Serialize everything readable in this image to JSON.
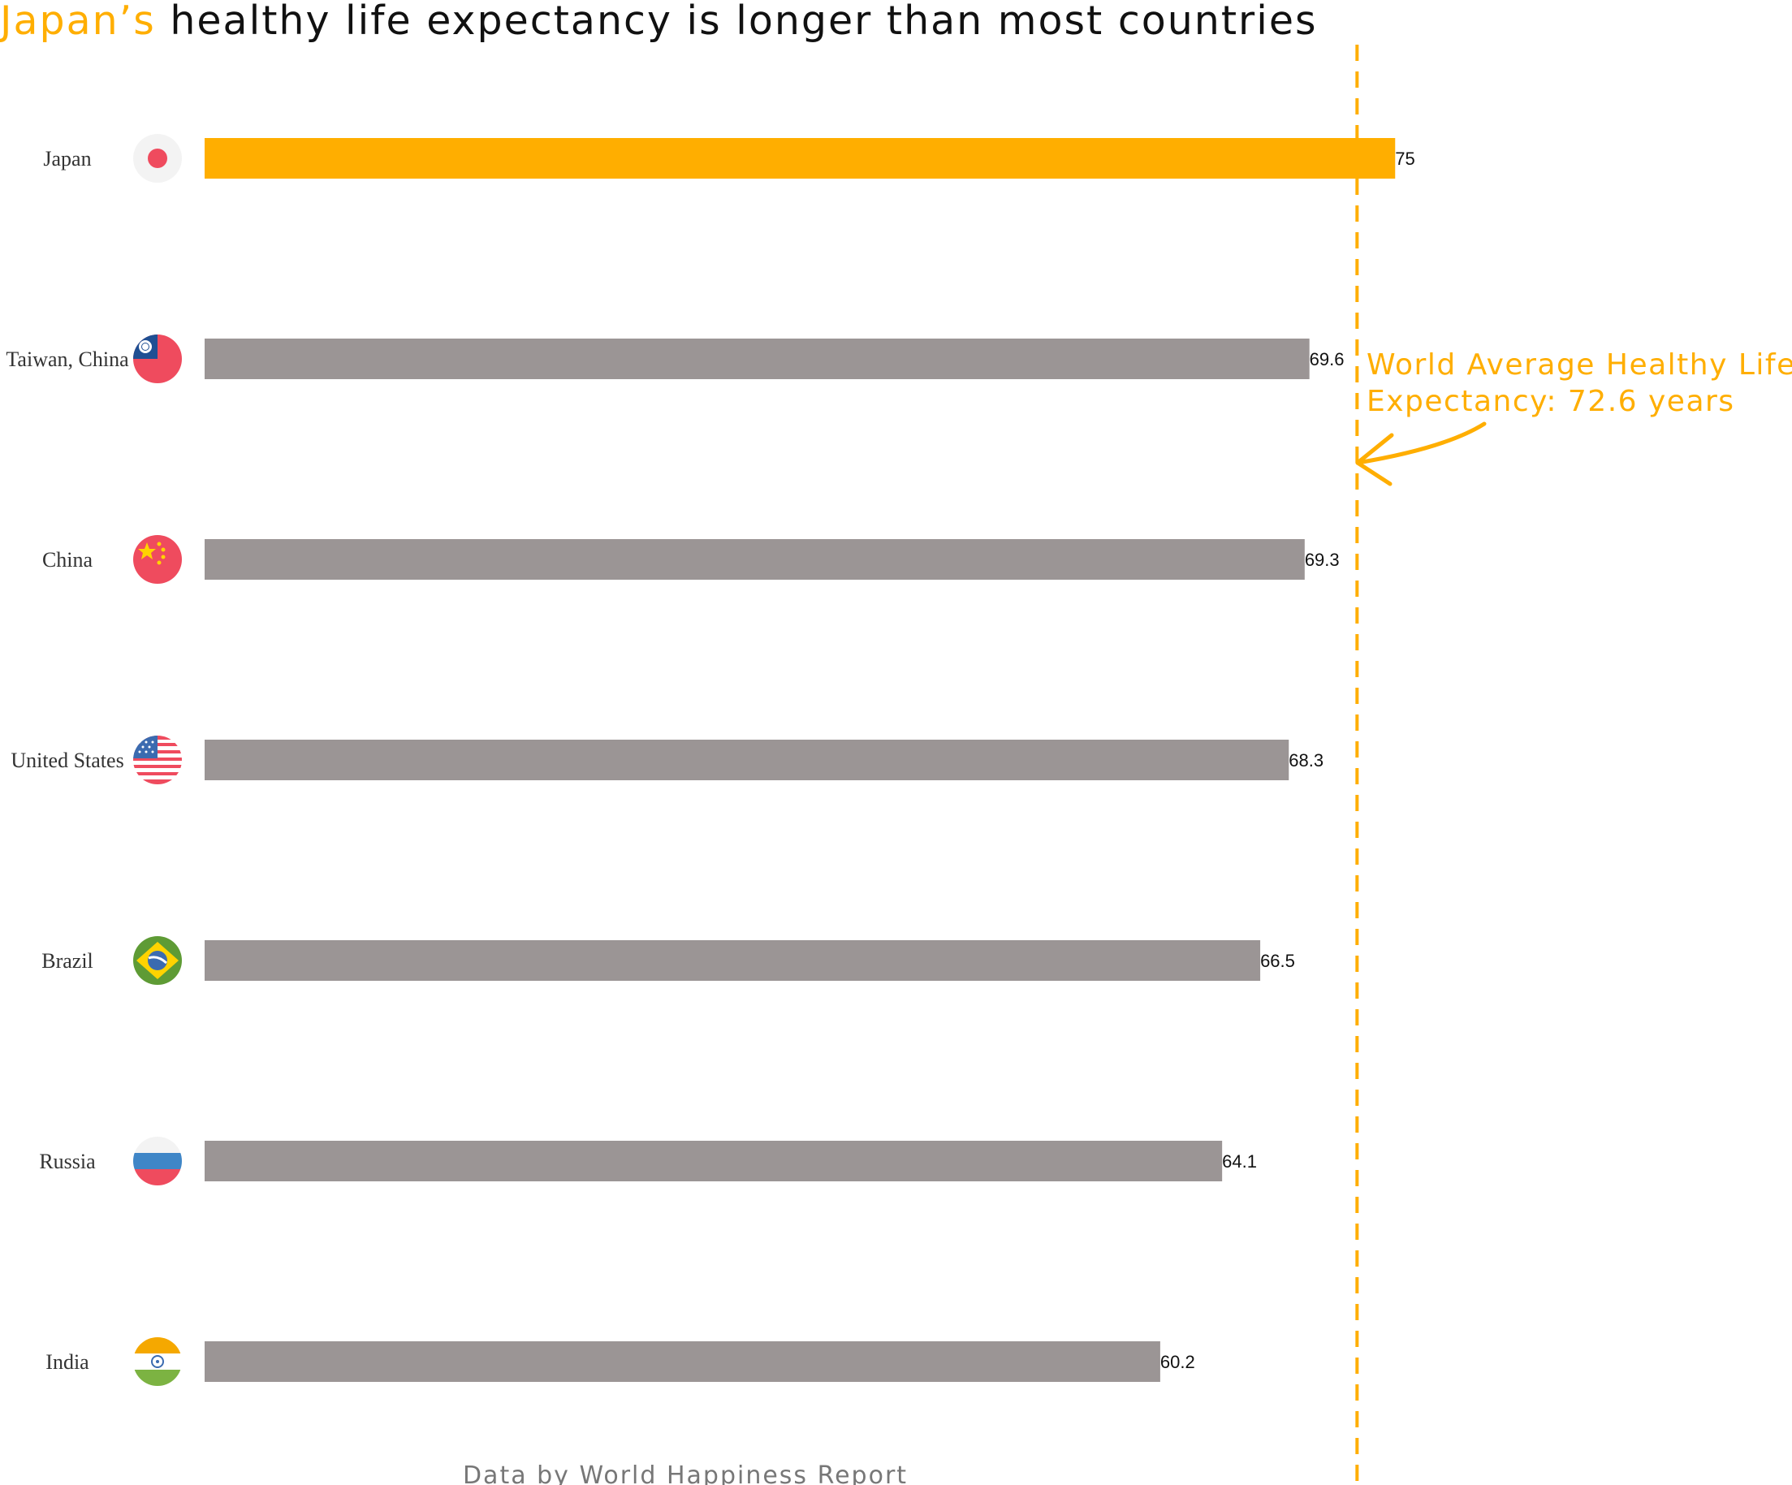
{
  "title": {
    "highlight": "Japan’s",
    "rest": " healthy life expectancy is longer than most countries"
  },
  "colors": {
    "accent": "#FFAE00",
    "bar": "#9B9595",
    "text": "#111111",
    "source": "#777777"
  },
  "annotation": {
    "line1": "World Average Healthy Life",
    "line2": "Expectancy: 72.6 years"
  },
  "source": "Data by World Happiness Report",
  "chart_data": {
    "type": "bar",
    "orientation": "horizontal",
    "categories": [
      "Japan",
      "Taiwan, China",
      "China",
      "United States",
      "Brazil",
      "Russia",
      "India"
    ],
    "values": [
      75,
      69.6,
      69.3,
      68.3,
      66.5,
      64.1,
      60.2
    ],
    "value_labels": [
      "75",
      "69.6",
      "69.3",
      "68.3",
      "66.5",
      "64.1",
      "60.2"
    ],
    "highlight_category": "Japan",
    "reference_line": {
      "value": 72.6,
      "style": "dashed"
    },
    "flag_icons": [
      "japan-flag-icon",
      "taiwan-flag-icon",
      "china-flag-icon",
      "usa-flag-icon",
      "brazil-flag-icon",
      "russia-flag-icon",
      "india-flag-icon"
    ],
    "xlim": [
      0,
      75
    ],
    "grid": false,
    "legend": "none"
  }
}
